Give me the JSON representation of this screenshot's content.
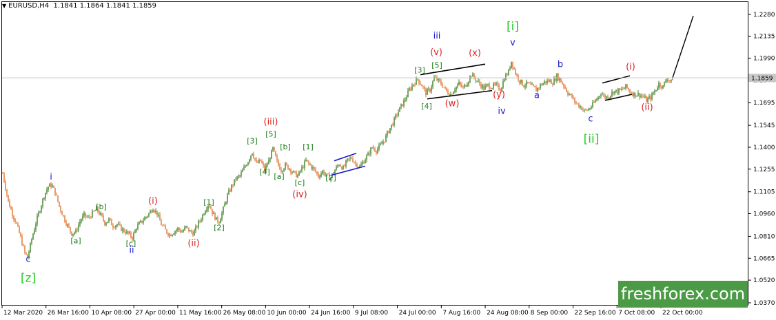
{
  "header": {
    "symbol": "EURUSD,H4",
    "ohlc": "1.1841 1.1864 1.1841 1.1859"
  },
  "brand": "freshforex.com",
  "chart_data": {
    "type": "candlestick",
    "symbol": "EURUSD",
    "timeframe": "H4",
    "ylim": [
      1.037,
      1.232
    ],
    "grid": false,
    "current_price": 1.1859,
    "y_ticks": [
      "1.2280",
      "1.2135",
      "1.1990",
      "1.1844",
      "1.1695",
      "1.1545",
      "1.1400",
      "1.1255",
      "1.1105",
      "1.0960",
      "1.0810",
      "1.0665",
      "1.0520",
      "1.0370"
    ],
    "x_ticks": [
      "12 Mar 2020",
      "26 Mar 16:00",
      "10 Apr 08:00",
      "27 Apr 00:00",
      "11 May 16:00",
      "26 May 08:00",
      "10 Jun 00:00",
      "24 Jun 16:00",
      "9 Jul 08:00",
      "24 Jul 00:00",
      "7 Aug 16:00",
      "24 Aug 08:00",
      "8 Sep 00:00",
      "22 Sep 16:00",
      "7 Oct 08:00",
      "22 Oct 00:00"
    ],
    "price_path": [
      [
        0,
        1.132
      ],
      [
        6,
        1.118
      ],
      [
        12,
        1.104
      ],
      [
        18,
        1.096
      ],
      [
        24,
        1.089
      ],
      [
        30,
        1.08
      ],
      [
        36,
        1.07
      ],
      [
        40,
        1.067
      ],
      [
        46,
        1.079
      ],
      [
        52,
        1.09
      ],
      [
        58,
        1.099
      ],
      [
        64,
        1.108
      ],
      [
        70,
        1.114
      ],
      [
        75,
        1.115
      ],
      [
        80,
        1.11
      ],
      [
        86,
        1.101
      ],
      [
        92,
        1.094
      ],
      [
        98,
        1.088
      ],
      [
        104,
        1.083
      ],
      [
        110,
        1.084
      ],
      [
        116,
        1.091
      ],
      [
        122,
        1.095
      ],
      [
        128,
        1.093
      ],
      [
        134,
        1.096
      ],
      [
        140,
        1.099
      ],
      [
        146,
        1.095
      ],
      [
        152,
        1.09
      ],
      [
        158,
        1.092
      ],
      [
        164,
        1.088
      ],
      [
        170,
        1.089
      ],
      [
        176,
        1.086
      ],
      [
        182,
        1.084
      ],
      [
        188,
        1.082
      ],
      [
        192,
        1.08
      ],
      [
        198,
        1.087
      ],
      [
        204,
        1.09
      ],
      [
        210,
        1.093
      ],
      [
        216,
        1.096
      ],
      [
        222,
        1.1
      ],
      [
        228,
        1.096
      ],
      [
        234,
        1.089
      ],
      [
        240,
        1.085
      ],
      [
        246,
        1.082
      ],
      [
        252,
        1.084
      ],
      [
        258,
        1.086
      ],
      [
        264,
        1.084
      ],
      [
        270,
        1.087
      ],
      [
        276,
        1.084
      ],
      [
        281,
        1.083
      ],
      [
        286,
        1.088
      ],
      [
        292,
        1.093
      ],
      [
        298,
        1.099
      ],
      [
        303,
        1.103
      ],
      [
        308,
        1.097
      ],
      [
        314,
        1.092
      ],
      [
        318,
        1.091
      ],
      [
        324,
        1.099
      ],
      [
        330,
        1.108
      ],
      [
        336,
        1.114
      ],
      [
        342,
        1.119
      ],
      [
        348,
        1.121
      ],
      [
        354,
        1.126
      ],
      [
        360,
        1.131
      ],
      [
        366,
        1.137
      ],
      [
        372,
        1.129
      ],
      [
        378,
        1.131
      ],
      [
        384,
        1.125
      ],
      [
        390,
        1.131
      ],
      [
        396,
        1.139
      ],
      [
        402,
        1.13
      ],
      [
        408,
        1.125
      ],
      [
        414,
        1.128
      ],
      [
        420,
        1.126
      ],
      [
        426,
        1.123
      ],
      [
        432,
        1.121
      ],
      [
        438,
        1.126
      ],
      [
        444,
        1.131
      ],
      [
        450,
        1.128
      ],
      [
        456,
        1.125
      ],
      [
        462,
        1.121
      ],
      [
        468,
        1.124
      ],
      [
        474,
        1.121
      ],
      [
        480,
        1.12
      ],
      [
        486,
        1.125
      ],
      [
        492,
        1.129
      ],
      [
        498,
        1.126
      ],
      [
        504,
        1.131
      ],
      [
        510,
        1.133
      ],
      [
        516,
        1.129
      ],
      [
        522,
        1.127
      ],
      [
        528,
        1.131
      ],
      [
        534,
        1.135
      ],
      [
        540,
        1.14
      ],
      [
        546,
        1.138
      ],
      [
        552,
        1.141
      ],
      [
        558,
        1.145
      ],
      [
        564,
        1.151
      ],
      [
        570,
        1.156
      ],
      [
        576,
        1.162
      ],
      [
        582,
        1.167
      ],
      [
        588,
        1.172
      ],
      [
        594,
        1.178
      ],
      [
        600,
        1.182
      ],
      [
        606,
        1.185
      ],
      [
        612,
        1.181
      ],
      [
        618,
        1.176
      ],
      [
        624,
        1.178
      ],
      [
        630,
        1.186
      ],
      [
        636,
        1.184
      ],
      [
        642,
        1.181
      ],
      [
        648,
        1.177
      ],
      [
        654,
        1.175
      ],
      [
        660,
        1.179
      ],
      [
        666,
        1.182
      ],
      [
        672,
        1.179
      ],
      [
        678,
        1.183
      ],
      [
        684,
        1.188
      ],
      [
        690,
        1.185
      ],
      [
        696,
        1.182
      ],
      [
        702,
        1.179
      ],
      [
        708,
        1.181
      ],
      [
        714,
        1.18
      ],
      [
        720,
        1.181
      ],
      [
        726,
        1.178
      ],
      [
        732,
        1.186
      ],
      [
        738,
        1.19
      ],
      [
        742,
        1.197
      ],
      [
        748,
        1.189
      ],
      [
        754,
        1.184
      ],
      [
        760,
        1.181
      ],
      [
        766,
        1.182
      ],
      [
        772,
        1.18
      ],
      [
        778,
        1.178
      ],
      [
        784,
        1.181
      ],
      [
        790,
        1.183
      ],
      [
        796,
        1.184
      ],
      [
        802,
        1.183
      ],
      [
        808,
        1.187
      ],
      [
        812,
        1.185
      ],
      [
        818,
        1.181
      ],
      [
        824,
        1.176
      ],
      [
        830,
        1.173
      ],
      [
        836,
        1.169
      ],
      [
        842,
        1.167
      ],
      [
        848,
        1.164
      ],
      [
        854,
        1.165
      ],
      [
        860,
        1.168
      ],
      [
        866,
        1.172
      ],
      [
        872,
        1.176
      ],
      [
        878,
        1.173
      ],
      [
        884,
        1.174
      ],
      [
        890,
        1.177
      ],
      [
        896,
        1.177
      ],
      [
        902,
        1.178
      ],
      [
        908,
        1.18
      ],
      [
        914,
        1.177
      ],
      [
        920,
        1.175
      ],
      [
        926,
        1.175
      ],
      [
        932,
        1.174
      ],
      [
        938,
        1.171
      ],
      [
        944,
        1.173
      ],
      [
        950,
        1.177
      ],
      [
        956,
        1.182
      ],
      [
        962,
        1.18
      ],
      [
        968,
        1.186
      ],
      [
        974,
        1.183
      ],
      [
        976,
        1.186
      ]
    ],
    "forecast": [
      [
        976,
        1.186
      ],
      [
        1006,
        1.227
      ]
    ],
    "channels": [
      {
        "color": "#000000",
        "points": [
          [
            874,
            1.1825
          ],
          [
            914,
            1.1873
          ]
        ]
      },
      {
        "color": "#000000",
        "points": [
          [
            878,
            1.171
          ],
          [
            917,
            1.175
          ]
        ]
      },
      {
        "color": "#000000",
        "points": [
          [
            610,
            1.188
          ],
          [
            704,
            1.195
          ]
        ]
      },
      {
        "color": "#000000",
        "points": [
          [
            620,
            1.172
          ],
          [
            714,
            1.1775
          ]
        ]
      },
      {
        "color": "#1a1acc",
        "points": [
          [
            485,
            1.131
          ],
          [
            517,
            1.136
          ]
        ]
      },
      {
        "color": "#1a1acc",
        "points": [
          [
            481,
            1.1215
          ],
          [
            530,
            1.1275
          ]
        ]
      }
    ],
    "wave_labels": [
      {
        "text": "c",
        "color": "#1a1acc",
        "x": 41,
        "y": 1.0642
      },
      {
        "text": "[z]",
        "color": "#22cc22",
        "x": 41,
        "y": 1.051
      },
      {
        "text": "i",
        "color": "#1a1acc",
        "x": 74,
        "y": 1.1185
      },
      {
        "text": "[a]",
        "color": "#1a7a1a",
        "x": 110,
        "y": 1.0765
      },
      {
        "text": "[b]",
        "color": "#1a7a1a",
        "x": 147,
        "y": 1.099
      },
      {
        "text": "[c]",
        "color": "#1a7a1a",
        "x": 190,
        "y": 1.0745
      },
      {
        "text": "ii",
        "color": "#1a1acc",
        "x": 191,
        "y": 1.07
      },
      {
        "text": "(i)",
        "color": "#dd2222",
        "x": 222,
        "y": 1.1025
      },
      {
        "text": "(ii)",
        "color": "#dd2222",
        "x": 281,
        "y": 1.0745
      },
      {
        "text": "[1]",
        "color": "#1a7a1a",
        "x": 303,
        "y": 1.102
      },
      {
        "text": "[2]",
        "color": "#1a7a1a",
        "x": 318,
        "y": 1.085
      },
      {
        "text": "[3]",
        "color": "#1a7a1a",
        "x": 366,
        "y": 1.1425
      },
      {
        "text": "(iii)",
        "color": "#dd2222",
        "x": 393,
        "y": 1.155
      },
      {
        "text": "[5]",
        "color": "#1a7a1a",
        "x": 393,
        "y": 1.147
      },
      {
        "text": "[4]",
        "color": "#1a7a1a",
        "x": 384,
        "y": 1.122
      },
      {
        "text": "[b]",
        "color": "#1a7a1a",
        "x": 414,
        "y": 1.1385
      },
      {
        "text": "[a]",
        "color": "#1a7a1a",
        "x": 405,
        "y": 1.119
      },
      {
        "text": "[1]",
        "color": "#1a7a1a",
        "x": 447,
        "y": 1.1385
      },
      {
        "text": "[c]",
        "color": "#1a7a1a",
        "x": 435,
        "y": 1.115
      },
      {
        "text": "(iv)",
        "color": "#dd2222",
        "x": 435,
        "y": 1.107
      },
      {
        "text": "[2]",
        "color": "#1a7a1a",
        "x": 480,
        "y": 1.118
      },
      {
        "text": "[3]",
        "color": "#1a7a1a",
        "x": 609,
        "y": 1.1895
      },
      {
        "text": "[5]",
        "color": "#1a7a1a",
        "x": 634,
        "y": 1.1925
      },
      {
        "text": "[4]",
        "color": "#1a7a1a",
        "x": 619,
        "y": 1.1655
      },
      {
        "text": "iii",
        "color": "#1a1acc",
        "x": 634,
        "y": 2.0
      },
      {
        "text": "(v)",
        "color": "#dd2222",
        "x": 633,
        "y": 1.201
      },
      {
        "text": "(w)",
        "color": "#dd2222",
        "x": 656,
        "y": 1.167
      },
      {
        "text": "(x)",
        "color": "#dd2222",
        "x": 689,
        "y": 1.2005
      },
      {
        "text": "(y)",
        "color": "#dd2222",
        "x": 724,
        "y": 1.173
      },
      {
        "text": "iv",
        "color": "#1a1acc",
        "x": 728,
        "y": 1.162
      },
      {
        "text": "[i]",
        "color": "#22cc22",
        "x": 744,
        "y": 1.2175
      },
      {
        "text": "v",
        "color": "#1a1acc",
        "x": 744,
        "y": 1.2075
      },
      {
        "text": "a",
        "color": "#1a1acc",
        "x": 779,
        "y": 1.1725
      },
      {
        "text": "b",
        "color": "#1a1acc",
        "x": 813,
        "y": 1.193
      },
      {
        "text": "c",
        "color": "#1a1acc",
        "x": 857,
        "y": 1.157
      },
      {
        "text": "[ii]",
        "color": "#22cc22",
        "x": 858,
        "y": 1.143
      },
      {
        "text": "(i)",
        "color": "#dd2222",
        "x": 915,
        "y": 1.1915
      },
      {
        "text": "(ii)",
        "color": "#dd2222",
        "x": 939,
        "y": 1.1645
      }
    ]
  }
}
